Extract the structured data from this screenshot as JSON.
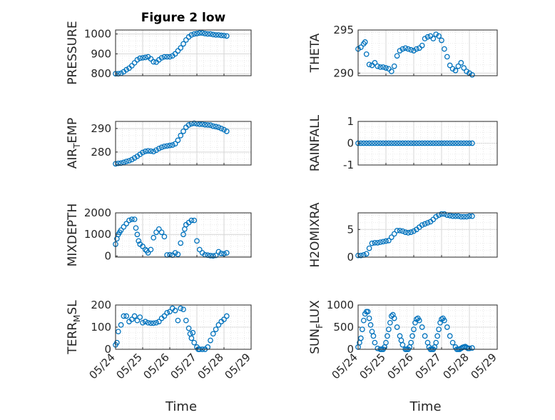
{
  "figure": {
    "title": "Figure 2 low",
    "xlabel": "Time",
    "x_tick_labels": [
      "05/24",
      "05/25",
      "05/26",
      "05/27",
      "05/28",
      "05/29"
    ]
  },
  "style": {
    "marker_color": "#0072BD",
    "grid_color": "#d6d6d6",
    "axis_color": "#262626"
  },
  "chart_data": [
    {
      "type": "scatter",
      "ylabel": "PRESSURE",
      "ylabel_sub": "",
      "ylabel_tail": "",
      "ylim": [
        790,
        1020
      ],
      "yticks": [
        800,
        900,
        1000
      ],
      "xlim": [
        0,
        5
      ],
      "x": [
        0,
        0.1,
        0.2,
        0.3,
        0.4,
        0.5,
        0.6,
        0.7,
        0.8,
        0.9,
        1.0,
        1.1,
        1.2,
        1.3,
        1.4,
        1.5,
        1.6,
        1.7,
        1.8,
        1.9,
        2.0,
        2.1,
        2.2,
        2.3,
        2.4,
        2.5,
        2.6,
        2.7,
        2.8,
        2.9,
        3.0,
        3.1,
        3.2,
        3.3,
        3.4,
        3.5,
        3.6,
        3.7,
        3.8,
        3.9,
        4.0,
        4.1
      ],
      "values": [
        800,
        800,
        802,
        810,
        820,
        828,
        840,
        855,
        870,
        878,
        880,
        882,
        885,
        875,
        860,
        858,
        870,
        880,
        885,
        885,
        885,
        890,
        900,
        915,
        930,
        950,
        970,
        985,
        995,
        1000,
        1002,
        1005,
        1005,
        1002,
        1000,
        1000,
        997,
        995,
        995,
        993,
        992,
        990
      ]
    },
    {
      "type": "scatter",
      "ylabel": "THETA",
      "ylabel_sub": "",
      "ylabel_tail": "",
      "ylim": [
        289.7,
        295
      ],
      "yticks": [
        290,
        295
      ],
      "xlim": [
        0,
        5
      ],
      "x": [
        0,
        0.1,
        0.2,
        0.25,
        0.3,
        0.4,
        0.5,
        0.6,
        0.7,
        0.8,
        0.9,
        1.0,
        1.1,
        1.2,
        1.3,
        1.4,
        1.5,
        1.6,
        1.7,
        1.8,
        1.9,
        2.0,
        2.1,
        2.2,
        2.3,
        2.4,
        2.5,
        2.6,
        2.7,
        2.8,
        2.9,
        3.0,
        3.1,
        3.2,
        3.3,
        3.4,
        3.5,
        3.6,
        3.7,
        3.8,
        3.9,
        4.0,
        4.1
      ],
      "values": [
        292.8,
        293.0,
        293.4,
        293.6,
        292.2,
        291.0,
        290.9,
        291.2,
        290.8,
        290.7,
        290.7,
        290.6,
        290.5,
        290.2,
        290.8,
        292.0,
        292.6,
        292.8,
        292.9,
        292.8,
        292.7,
        292.6,
        292.8,
        292.9,
        293.2,
        294.0,
        294.2,
        294.3,
        294.0,
        294.5,
        294.3,
        293.8,
        292.8,
        291.9,
        290.9,
        290.5,
        290.3,
        290.8,
        291.2,
        290.6,
        290.2,
        290.0,
        289.8
      ]
    },
    {
      "type": "scatter",
      "ylabel": "AIR",
      "ylabel_sub": "T",
      "ylabel_tail": "EMP",
      "ylim": [
        274.5,
        293
      ],
      "yticks": [
        280,
        290
      ],
      "xlim": [
        0,
        5
      ],
      "x": [
        0,
        0.1,
        0.2,
        0.3,
        0.4,
        0.5,
        0.6,
        0.7,
        0.8,
        0.9,
        1.0,
        1.1,
        1.2,
        1.3,
        1.4,
        1.5,
        1.6,
        1.7,
        1.8,
        1.9,
        2.0,
        2.1,
        2.2,
        2.3,
        2.4,
        2.5,
        2.6,
        2.7,
        2.8,
        2.9,
        3.0,
        3.1,
        3.2,
        3.3,
        3.4,
        3.5,
        3.6,
        3.7,
        3.8,
        3.9,
        4.0,
        4.1
      ],
      "values": [
        275.0,
        275.2,
        275.3,
        275.6,
        276.0,
        276.3,
        276.8,
        277.5,
        278.2,
        279.0,
        279.8,
        280.3,
        280.5,
        280.4,
        280.2,
        280.8,
        281.5,
        282.0,
        282.4,
        282.6,
        282.8,
        283.0,
        283.5,
        285.0,
        287.0,
        288.8,
        290.5,
        291.5,
        292.0,
        292.2,
        292.0,
        291.8,
        291.8,
        291.6,
        291.5,
        291.4,
        291.0,
        290.8,
        290.5,
        290.0,
        289.5,
        288.8
      ]
    },
    {
      "type": "scatter",
      "ylabel": "RAINFALL",
      "ylabel_sub": "",
      "ylabel_tail": "",
      "ylim": [
        -1,
        1
      ],
      "yticks": [
        -1,
        0,
        1
      ],
      "xlim": [
        0,
        5
      ],
      "x": [
        0,
        0.1,
        0.2,
        0.3,
        0.4,
        0.5,
        0.6,
        0.7,
        0.8,
        0.9,
        1.0,
        1.1,
        1.2,
        1.3,
        1.4,
        1.5,
        1.6,
        1.7,
        1.8,
        1.9,
        2.0,
        2.1,
        2.2,
        2.3,
        2.4,
        2.5,
        2.6,
        2.7,
        2.8,
        2.9,
        3.0,
        3.1,
        3.2,
        3.3,
        3.4,
        3.5,
        3.6,
        3.7,
        3.8,
        3.9,
        4.0,
        4.1
      ],
      "values": [
        0,
        0,
        0,
        0,
        0,
        0,
        0,
        0,
        0,
        0,
        0,
        0,
        0,
        0,
        0,
        0,
        0,
        0,
        0,
        0,
        0,
        0,
        0,
        0,
        0,
        0,
        0,
        0,
        0,
        0,
        0,
        0,
        0,
        0,
        0,
        0,
        0,
        0,
        0,
        0,
        0,
        0
      ]
    },
    {
      "type": "scatter",
      "ylabel": "MIXDEPTH",
      "ylabel_sub": "",
      "ylabel_tail": "",
      "ylim": [
        -50,
        2000
      ],
      "yticks": [
        0,
        1000,
        2000
      ],
      "xlim": [
        0,
        5
      ],
      "x": [
        0,
        0.05,
        0.1,
        0.15,
        0.2,
        0.3,
        0.4,
        0.5,
        0.6,
        0.7,
        0.75,
        0.8,
        0.85,
        0.9,
        1.0,
        1.1,
        1.15,
        1.2,
        1.3,
        1.4,
        1.5,
        1.6,
        1.7,
        1.8,
        1.9,
        2.0,
        2.1,
        2.2,
        2.3,
        2.4,
        2.5,
        2.55,
        2.6,
        2.7,
        2.8,
        2.9,
        3.0,
        3.1,
        3.2,
        3.3,
        3.4,
        3.5,
        3.6,
        3.7,
        3.8,
        3.9,
        4.0,
        4.1
      ],
      "values": [
        550,
        800,
        1000,
        1100,
        1200,
        1350,
        1500,
        1650,
        1700,
        1700,
        1300,
        1000,
        700,
        550,
        450,
        300,
        250,
        150,
        300,
        850,
        1100,
        1250,
        1100,
        900,
        50,
        60,
        40,
        150,
        80,
        600,
        1000,
        1250,
        1450,
        1550,
        1650,
        1650,
        700,
        300,
        150,
        60,
        40,
        20,
        10,
        30,
        200,
        120,
        100,
        150
      ]
    },
    {
      "type": "scatter",
      "ylabel": "H2OMIXRA",
      "ylabel_sub": "",
      "ylabel_tail": "",
      "ylim": [
        0,
        8
      ],
      "yticks": [
        0,
        5
      ],
      "xlim": [
        0,
        5
      ],
      "x": [
        0,
        0.1,
        0.2,
        0.3,
        0.4,
        0.5,
        0.6,
        0.7,
        0.8,
        0.9,
        1.0,
        1.1,
        1.2,
        1.3,
        1.4,
        1.5,
        1.6,
        1.7,
        1.8,
        1.9,
        2.0,
        2.1,
        2.2,
        2.3,
        2.4,
        2.5,
        2.6,
        2.7,
        2.8,
        2.9,
        3.0,
        3.1,
        3.2,
        3.3,
        3.4,
        3.5,
        3.6,
        3.7,
        3.8,
        3.9,
        4.0,
        4.1
      ],
      "values": [
        0.3,
        0.3,
        0.4,
        0.6,
        1.6,
        2.5,
        2.6,
        2.6,
        2.7,
        2.8,
        2.9,
        3.0,
        3.6,
        4.2,
        4.8,
        4.8,
        4.7,
        4.5,
        4.4,
        4.5,
        4.7,
        5.0,
        5.4,
        5.8,
        6.0,
        6.2,
        6.4,
        6.8,
        7.3,
        7.6,
        7.8,
        7.8,
        7.6,
        7.5,
        7.4,
        7.4,
        7.4,
        7.3,
        7.3,
        7.3,
        7.4,
        7.4
      ]
    },
    {
      "type": "scatter",
      "ylabel": "TERR",
      "ylabel_sub": "M",
      "ylabel_tail": "SL",
      "ylim": [
        0,
        200
      ],
      "yticks": [
        0,
        100,
        200
      ],
      "xlim": [
        0,
        5
      ],
      "x": [
        0,
        0.05,
        0.1,
        0.2,
        0.3,
        0.4,
        0.5,
        0.6,
        0.7,
        0.8,
        0.9,
        1.0,
        1.1,
        1.2,
        1.3,
        1.4,
        1.5,
        1.6,
        1.7,
        1.8,
        1.9,
        2.0,
        2.1,
        2.2,
        2.3,
        2.4,
        2.5,
        2.6,
        2.7,
        2.75,
        2.8,
        2.85,
        2.9,
        3.0,
        3.05,
        3.1,
        3.2,
        3.3,
        3.4,
        3.5,
        3.6,
        3.7,
        3.8,
        3.9,
        4.0,
        4.1
      ],
      "values": [
        20,
        30,
        80,
        110,
        150,
        150,
        125,
        135,
        150,
        130,
        145,
        120,
        125,
        120,
        118,
        118,
        120,
        125,
        140,
        150,
        165,
        170,
        185,
        175,
        130,
        185,
        180,
        130,
        95,
        70,
        50,
        75,
        30,
        10,
        0,
        0,
        0,
        0,
        10,
        40,
        70,
        90,
        110,
        125,
        135,
        150
      ]
    },
    {
      "type": "scatter",
      "ylabel": "SUN",
      "ylabel_sub": "F",
      "ylabel_tail": "LUX",
      "ylim": [
        0,
        1000
      ],
      "yticks": [
        0,
        500,
        1000
      ],
      "xlim": [
        0,
        5
      ],
      "x": [
        0,
        0.05,
        0.1,
        0.15,
        0.2,
        0.25,
        0.3,
        0.35,
        0.4,
        0.45,
        0.5,
        0.55,
        0.6,
        0.7,
        0.8,
        0.85,
        0.9,
        0.95,
        1.0,
        1.05,
        1.1,
        1.15,
        1.2,
        1.25,
        1.3,
        1.4,
        1.5,
        1.55,
        1.6,
        1.7,
        1.75,
        1.8,
        1.85,
        1.9,
        1.95,
        2.0,
        2.05,
        2.1,
        2.15,
        2.2,
        2.3,
        2.4,
        2.5,
        2.55,
        2.6,
        2.65,
        2.7,
        2.75,
        2.8,
        2.85,
        2.9,
        2.95,
        3.0,
        3.05,
        3.1,
        3.2,
        3.3,
        3.4,
        3.5,
        3.55,
        3.6,
        3.65,
        3.7,
        3.75,
        3.8,
        3.85,
        3.9,
        3.95,
        4.0,
        4.1
      ],
      "values": [
        50,
        150,
        250,
        450,
        650,
        800,
        850,
        850,
        700,
        550,
        400,
        300,
        150,
        20,
        0,
        0,
        0,
        50,
        150,
        300,
        450,
        600,
        750,
        780,
        700,
        500,
        300,
        200,
        100,
        0,
        0,
        0,
        50,
        150,
        300,
        450,
        600,
        680,
        700,
        650,
        500,
        300,
        150,
        50,
        0,
        0,
        0,
        50,
        150,
        300,
        450,
        600,
        680,
        700,
        650,
        500,
        300,
        150,
        50,
        0,
        0,
        0,
        20,
        40,
        50,
        60,
        40,
        20,
        20,
        30
      ]
    }
  ]
}
